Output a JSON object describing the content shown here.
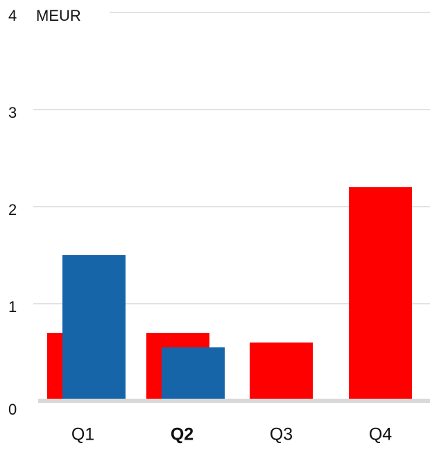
{
  "chart_data": {
    "type": "bar",
    "y_label": "MEUR",
    "categories": [
      "Q1",
      "Q2",
      "Q3",
      "Q4"
    ],
    "bold_category": 1,
    "series": [
      {
        "color": "#ff0000",
        "values": [
          0.7,
          0.7,
          0.6,
          2.2
        ]
      },
      {
        "color": "#1565a8",
        "values": [
          1.5,
          0.55,
          null,
          null
        ]
      }
    ],
    "ylim": [
      0,
      4
    ],
    "yticks": [
      0,
      1,
      2,
      3,
      4
    ],
    "grid": true
  }
}
